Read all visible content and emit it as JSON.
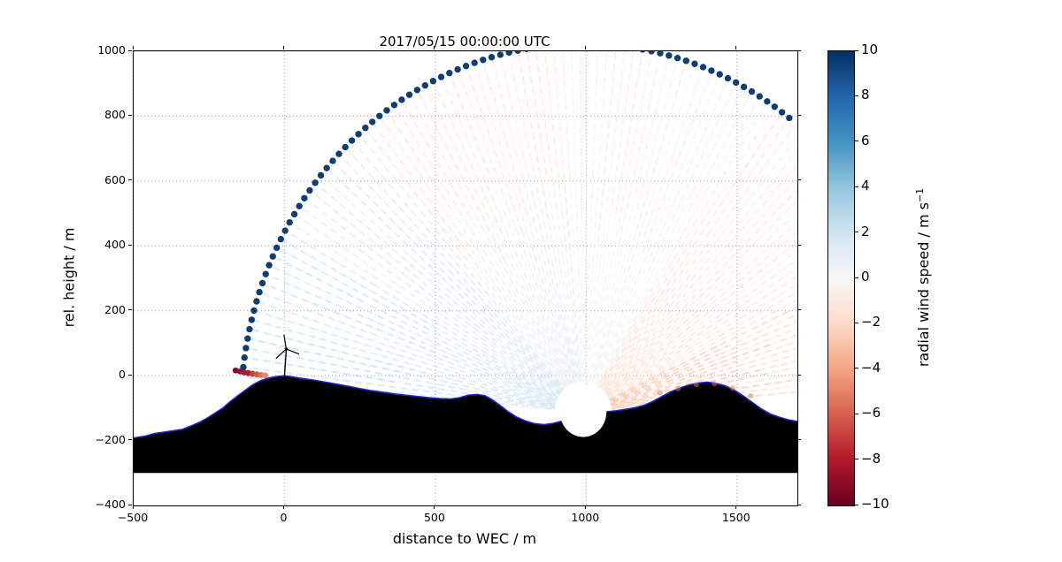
{
  "title": "2017/05/15 00:00:00 UTC",
  "axes": {
    "xlabel": "distance to WEC / m",
    "ylabel": "rel. height / m",
    "xlim": [
      -500,
      1700
    ],
    "ylim": [
      -400,
      1000
    ],
    "xticks": [
      -500,
      0,
      500,
      1000,
      1500
    ],
    "yticks": [
      -400,
      -200,
      0,
      200,
      400,
      600,
      800,
      1000
    ],
    "grid_style": "dotted",
    "grid_color": "#999999"
  },
  "colorbar": {
    "label_main": "radial wind speed / m s",
    "label_sup": "−1",
    "vmin": -10,
    "vmax": 10,
    "ticks": [
      10,
      8,
      6,
      4,
      2,
      0,
      -2,
      -4,
      -6,
      -8,
      -10
    ],
    "stops": [
      [
        0.0,
        "#053061"
      ],
      [
        0.1,
        "#2166ac"
      ],
      [
        0.2,
        "#4393c3"
      ],
      [
        0.3,
        "#92c5de"
      ],
      [
        0.4,
        "#d1e5f0"
      ],
      [
        0.5,
        "#f7f7f7"
      ],
      [
        0.6,
        "#fddbc7"
      ],
      [
        0.7,
        "#f4a582"
      ],
      [
        0.8,
        "#d6604d"
      ],
      [
        0.9,
        "#b2182b"
      ],
      [
        1.0,
        "#67001f"
      ]
    ]
  },
  "chart_data": {
    "type": "scatter",
    "title": "2017/05/15 00:00:00 UTC",
    "xlabel": "distance to WEC / m",
    "ylabel": "rel. height / m",
    "xlim": [
      -500,
      1700
    ],
    "ylim": [
      -400,
      1000
    ],
    "lidar": {
      "x": 990,
      "y": -112,
      "mask_radius_m": 77
    },
    "scan": {
      "range_start_m": 95,
      "max_range_m": 1135,
      "elev_min_deg": 5,
      "elev_max_deg": 176,
      "beam_step_deg": 1.5,
      "arc_dots": {
        "elev_min_deg": 53,
        "elev_max_deg": 173.5,
        "color": "#0f3f72",
        "radius_px": 3.7
      },
      "velocity_by_elevation_outer": [
        [
          5,
          25,
          -2.0
        ],
        [
          25,
          60,
          -1.1
        ],
        [
          60,
          95,
          -0.5
        ],
        [
          95,
          130,
          -1.3
        ],
        [
          130,
          152,
          1.4
        ],
        [
          152,
          176,
          2.4
        ]
      ],
      "velocity_by_elevation_inner": [
        [
          5,
          25,
          -2.8
        ],
        [
          25,
          60,
          -1.3
        ],
        [
          60,
          95,
          0.3
        ],
        [
          95,
          130,
          0.8
        ],
        [
          130,
          152,
          1.5
        ],
        [
          152,
          176,
          2.0
        ]
      ]
    },
    "hard_target_dots": {
      "points": [
        [
          -162,
          16
        ],
        [
          -148,
          13
        ],
        [
          -134,
          10
        ],
        [
          -120,
          8
        ],
        [
          -106,
          6
        ],
        [
          -92,
          4
        ],
        [
          -78,
          2
        ],
        [
          -64,
          1
        ]
      ],
      "colors": [
        "#7f0c23",
        "#92152c",
        "#a51c30",
        "#b2182b",
        "#c04038",
        "#cd5a45",
        "#d97355",
        "#e28d67"
      ],
      "radius_px": 3.4
    },
    "ground_tint_dots": {
      "points": [
        [
          1245,
          -52
        ],
        [
          1305,
          -40
        ],
        [
          1365,
          -28
        ],
        [
          1425,
          -25
        ],
        [
          1485,
          -38
        ],
        [
          1545,
          -62
        ]
      ],
      "color": "#dd7a52",
      "opacity": 0.5,
      "radius_px": 3
    },
    "terrain": {
      "fill": "#000000",
      "outline": "#2222cc",
      "base_y": -300,
      "profile": [
        [
          -500,
          -192
        ],
        [
          -460,
          -186
        ],
        [
          -430,
          -178
        ],
        [
          -400,
          -174
        ],
        [
          -370,
          -170
        ],
        [
          -340,
          -166
        ],
        [
          -310,
          -155
        ],
        [
          -280,
          -143
        ],
        [
          -255,
          -130
        ],
        [
          -230,
          -115
        ],
        [
          -205,
          -100
        ],
        [
          -180,
          -80
        ],
        [
          -155,
          -62
        ],
        [
          -130,
          -45
        ],
        [
          -105,
          -28
        ],
        [
          -80,
          -16
        ],
        [
          -55,
          -8
        ],
        [
          -30,
          -3
        ],
        [
          -10,
          -1
        ],
        [
          0,
          0
        ],
        [
          15,
          -2
        ],
        [
          40,
          -6
        ],
        [
          70,
          -10
        ],
        [
          100,
          -14
        ],
        [
          130,
          -19
        ],
        [
          160,
          -24
        ],
        [
          190,
          -29
        ],
        [
          220,
          -34
        ],
        [
          250,
          -40
        ],
        [
          280,
          -45
        ],
        [
          310,
          -49
        ],
        [
          340,
          -53
        ],
        [
          370,
          -57
        ],
        [
          400,
          -60
        ],
        [
          430,
          -63
        ],
        [
          460,
          -66
        ],
        [
          490,
          -69
        ],
        [
          520,
          -71
        ],
        [
          550,
          -72
        ],
        [
          580,
          -68
        ],
        [
          610,
          -60
        ],
        [
          640,
          -58
        ],
        [
          665,
          -62
        ],
        [
          690,
          -75
        ],
        [
          715,
          -92
        ],
        [
          740,
          -110
        ],
        [
          770,
          -128
        ],
        [
          800,
          -140
        ],
        [
          830,
          -148
        ],
        [
          860,
          -151
        ],
        [
          890,
          -147
        ],
        [
          920,
          -140
        ],
        [
          950,
          -132
        ],
        [
          980,
          -126
        ],
        [
          1010,
          -120
        ],
        [
          1040,
          -115
        ],
        [
          1070,
          -111
        ],
        [
          1100,
          -108
        ],
        [
          1130,
          -104
        ],
        [
          1160,
          -99
        ],
        [
          1190,
          -92
        ],
        [
          1220,
          -80
        ],
        [
          1250,
          -65
        ],
        [
          1280,
          -50
        ],
        [
          1310,
          -38
        ],
        [
          1340,
          -29
        ],
        [
          1370,
          -23
        ],
        [
          1400,
          -20
        ],
        [
          1430,
          -24
        ],
        [
          1460,
          -31
        ],
        [
          1490,
          -44
        ],
        [
          1520,
          -62
        ],
        [
          1550,
          -82
        ],
        [
          1580,
          -102
        ],
        [
          1610,
          -118
        ],
        [
          1640,
          -128
        ],
        [
          1670,
          -136
        ],
        [
          1700,
          -141
        ]
      ]
    },
    "turbine": {
      "base": [
        0,
        0
      ],
      "hub": [
        6,
        82
      ],
      "rotor_radius_m": 45,
      "blade_angles_deg": [
        100,
        220,
        340
      ],
      "color": "#000000"
    }
  }
}
